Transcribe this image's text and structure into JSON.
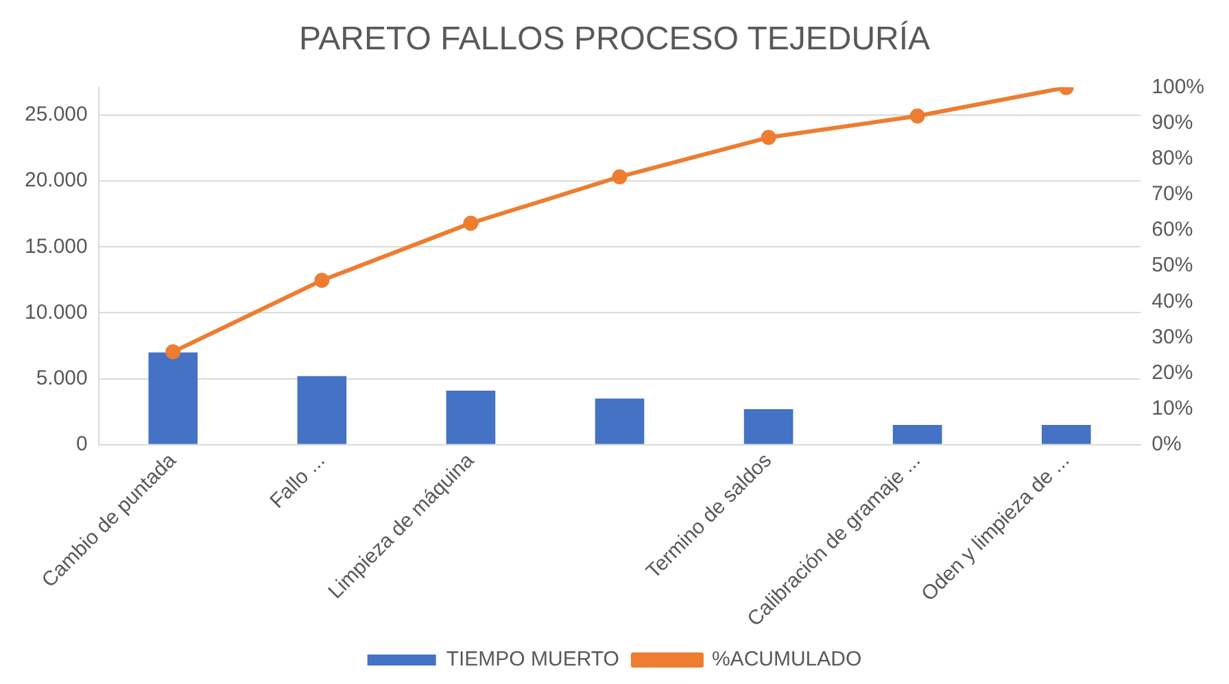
{
  "chart_data": {
    "type": "bar",
    "title": "PARETO FALLOS PROCESO TEJEDURÍA",
    "categories": [
      "Cambio de puntada",
      "Fallo ...",
      "Limpieza de máquina",
      null,
      "Termino de saldos",
      "Calibración de gramaje ...",
      "Oden y limpieza de ..."
    ],
    "series": [
      {
        "name": "TIEMPO MUERTO",
        "color": "#4472c4",
        "values": [
          7000,
          5200,
          4100,
          3500,
          2700,
          1500,
          1500
        ]
      },
      {
        "name": "%ACUMULADO",
        "type": "line",
        "axis": "y2",
        "color": "#ed7d31",
        "values": [
          26,
          46,
          62,
          75,
          86,
          92,
          100
        ]
      }
    ],
    "ylim": [
      0,
      27100
    ],
    "yticks": [
      {
        "value": 0,
        "label": "0"
      },
      {
        "value": 5000,
        "label": "5.000"
      },
      {
        "value": 10000,
        "label": "10.000"
      },
      {
        "value": 15000,
        "label": "15.000"
      },
      {
        "value": 20000,
        "label": "20.000"
      },
      {
        "value": 25000,
        "label": "25.000"
      }
    ],
    "y2lim": [
      0,
      100
    ],
    "y2ticks": [
      {
        "value": 0,
        "label": "0%"
      },
      {
        "value": 10,
        "label": "10%"
      },
      {
        "value": 20,
        "label": "20%"
      },
      {
        "value": 30,
        "label": "30%"
      },
      {
        "value": 40,
        "label": "40%"
      },
      {
        "value": 50,
        "label": "50%"
      },
      {
        "value": 60,
        "label": "60%"
      },
      {
        "value": 70,
        "label": "70%"
      },
      {
        "value": 80,
        "label": "80%"
      },
      {
        "value": 90,
        "label": "90%"
      },
      {
        "value": 100,
        "label": "100%"
      }
    ],
    "grid": "y",
    "legend": "bottom",
    "marker": "circle",
    "line_style": "solid"
  }
}
